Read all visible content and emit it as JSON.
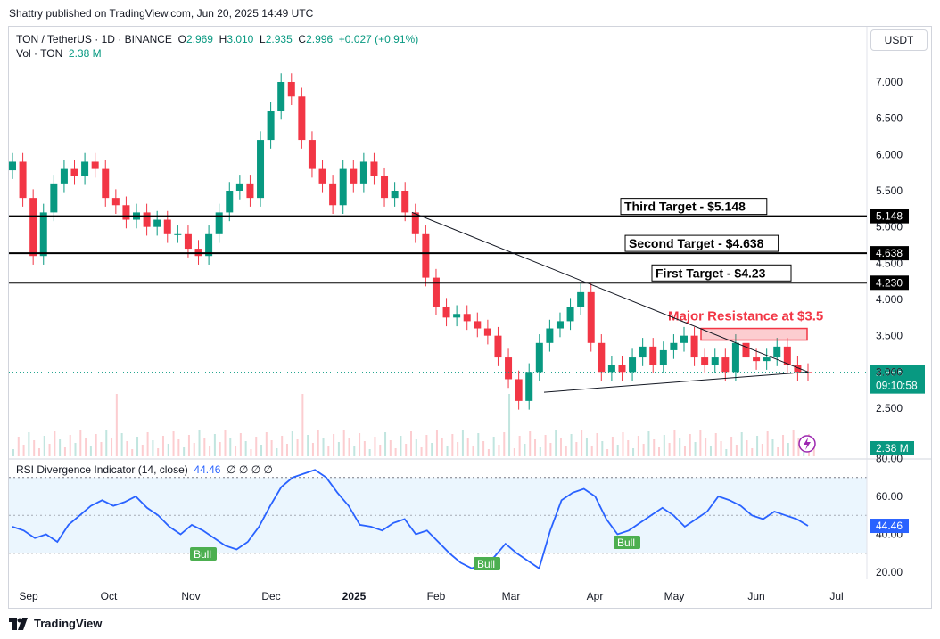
{
  "publisher_line": "Shattry published on TradingView.com, Jun 20, 2025 14:49 UTC",
  "legend": {
    "symbol": "TON / TetherUS · 1D · BINANCE",
    "o_label": "O",
    "o": "2.969",
    "h_label": "H",
    "h": "3.010",
    "l_label": "L",
    "l": "2.935",
    "c_label": "C",
    "c": "2.996",
    "change": "+0.027 (+0.91%)",
    "vol_label": "Vol · TON",
    "vol": "2.38 M"
  },
  "currency_button": "USDT",
  "rsi_legend": {
    "name": "RSI Divergence Indicator (14, close)",
    "value": "44.46",
    "icons": "∅ ∅ ∅ ∅"
  },
  "footer": {
    "brand": "TradingView"
  },
  "colors": {
    "up": "#089981",
    "down": "#f23645",
    "rsi": "#2962ff",
    "resistance": "#f23645",
    "bull": "#4caf50"
  },
  "chart_data": {
    "type": "candlestick",
    "price_axis": {
      "ticks": [
        "7.000",
        "6.500",
        "6.000",
        "5.500",
        "5.000",
        "4.500",
        "4.000",
        "3.500",
        "3.000",
        "2.500"
      ],
      "range": [
        2.3,
        7.2
      ]
    },
    "time_axis": {
      "ticks": [
        "Sep",
        "Oct",
        "Nov",
        "Dec",
        "2025",
        "Feb",
        "Mar",
        "Apr",
        "May",
        "Jun",
        "Jul"
      ]
    },
    "horizontal_levels": [
      {
        "label": "Third Target - $5.148",
        "value": 5.148,
        "tag": "5.148"
      },
      {
        "label": "Second Target - $4.638",
        "value": 4.638,
        "tag": "4.638"
      },
      {
        "label": "First Target - $4.23",
        "value": 4.23,
        "tag": "4.230"
      }
    ],
    "resistance_zone": {
      "label": "Major Resistance at $3.5",
      "low": 3.44,
      "high": 3.6
    },
    "trendlines": [
      {
        "from": [
          "2025-01-24",
          5.2
        ],
        "to": [
          "2025-06-20",
          3.0
        ]
      },
      {
        "from": [
          "2025-03-11",
          2.72
        ],
        "to": [
          "2025-06-20",
          3.0
        ]
      }
    ],
    "last_price": {
      "value": "2.996",
      "countdown": "09:10:58"
    },
    "volume_last": "2.38 M",
    "close_series": {
      "months": [
        "Sep",
        "Oct",
        "Nov",
        "Dec",
        "Jan",
        "Feb",
        "Mar",
        "Apr",
        "May",
        "Jun"
      ],
      "closes": [
        [
          5.9,
          5.4,
          4.6,
          5.2,
          5.6,
          5.8,
          5.7,
          5.9
        ],
        [
          5.8,
          5.4,
          5.3,
          5.1,
          5.2,
          5.0,
          5.1,
          4.9
        ],
        [
          4.9,
          4.7,
          4.6,
          4.9,
          5.2,
          5.5,
          5.6,
          5.4
        ],
        [
          6.2,
          6.6,
          7.0,
          6.8,
          6.2,
          5.8,
          5.6,
          5.3
        ],
        [
          5.8,
          5.6,
          5.9,
          5.7,
          5.4,
          5.5,
          5.2,
          4.9
        ],
        [
          4.3,
          3.9,
          3.75,
          3.8,
          3.7,
          3.6,
          3.5,
          3.2
        ],
        [
          2.9,
          2.6,
          3.0,
          3.4,
          3.6,
          3.7,
          3.9,
          4.1
        ],
        [
          3.4,
          3.0,
          3.1,
          3.0,
          3.2,
          3.35,
          3.1,
          3.3
        ],
        [
          3.4,
          3.5,
          3.2,
          3.1,
          3.2,
          3.0,
          3.4,
          3.2
        ],
        [
          3.15,
          3.2,
          3.35,
          3.1,
          3.0,
          2.996
        ]
      ]
    },
    "rsi": {
      "axis_ticks": [
        "80.00",
        "60.00",
        "40.00",
        "20.00"
      ],
      "range": [
        15,
        82
      ],
      "band": [
        30,
        70
      ],
      "current": "44.46",
      "values": [
        44,
        42,
        38,
        40,
        36,
        45,
        50,
        55,
        58,
        55,
        57,
        60,
        54,
        50,
        44,
        40,
        45,
        42,
        38,
        34,
        32,
        36,
        44,
        55,
        65,
        70,
        72,
        74,
        70,
        62,
        55,
        45,
        44,
        42,
        46,
        48,
        40,
        42,
        36,
        30,
        25,
        22,
        25,
        28,
        35,
        30,
        26,
        22,
        42,
        58,
        62,
        64,
        60,
        48,
        40,
        42,
        46,
        50,
        54,
        50,
        44,
        48,
        52,
        60,
        58,
        55,
        50,
        48,
        52,
        50,
        48,
        44.46
      ],
      "bull_labels": [
        "Bull",
        "Bull",
        "Bull"
      ]
    }
  }
}
